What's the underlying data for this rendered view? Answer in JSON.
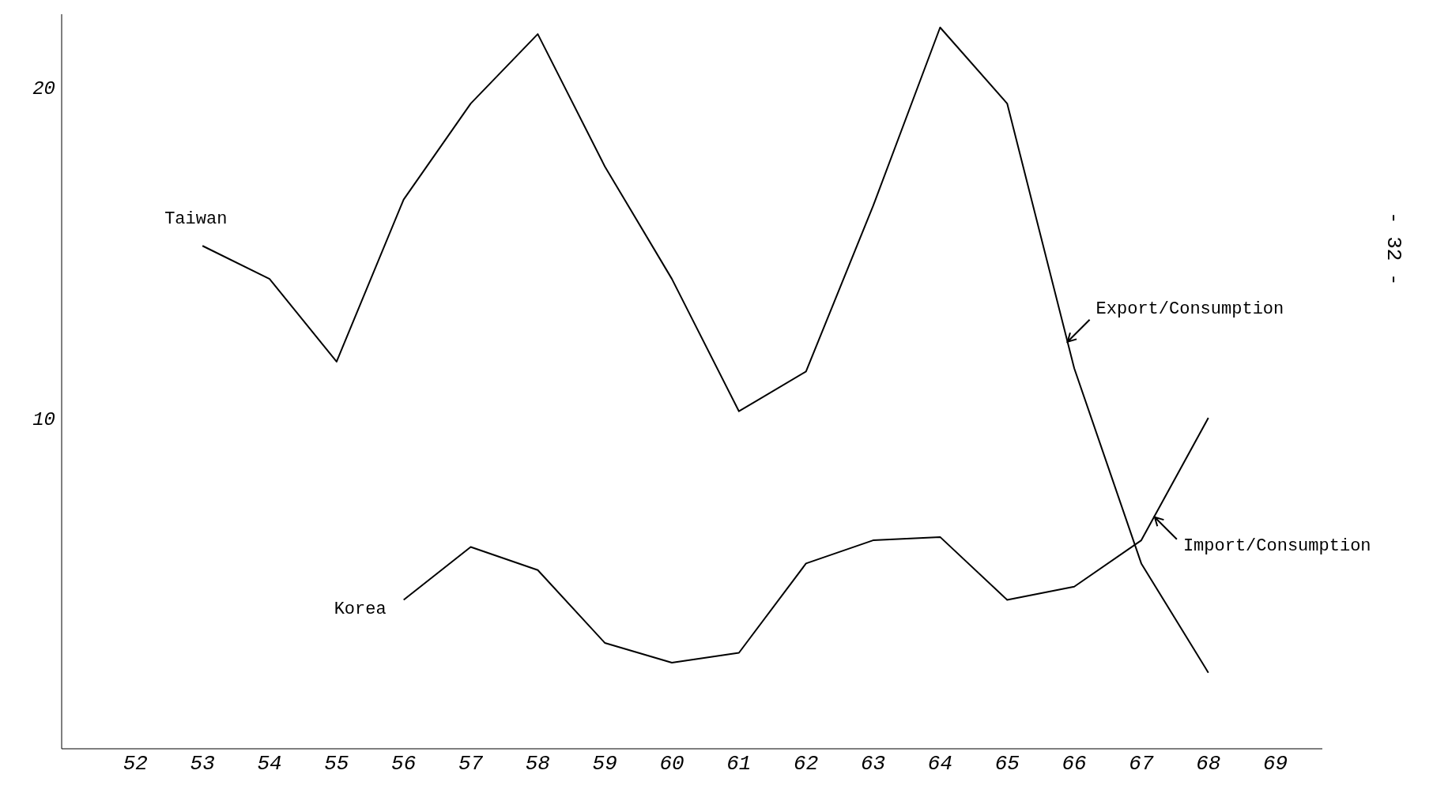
{
  "chart_data": {
    "type": "line",
    "x": [
      53,
      54,
      55,
      56,
      57,
      58,
      59,
      60,
      61,
      62,
      63,
      64,
      65,
      66,
      67,
      68
    ],
    "series": [
      {
        "name": "Taiwan",
        "color": "#000000",
        "values": [
          15.2,
          14.2,
          11.7,
          16.6,
          19.5,
          21.6,
          17.6,
          14.2,
          10.2,
          11.4,
          16.4,
          21.8,
          19.5,
          11.5,
          5.6,
          2.3
        ]
      },
      {
        "name": "Korea",
        "color": "#000000",
        "values": [
          null,
          null,
          null,
          4.5,
          6.1,
          5.4,
          3.2,
          2.6,
          2.9,
          5.6,
          6.3,
          6.4,
          4.5,
          4.9,
          6.3,
          10.0
        ]
      }
    ],
    "xlim": [
      50.9,
      69.7
    ],
    "xticks": [
      52,
      53,
      54,
      55,
      56,
      57,
      58,
      59,
      60,
      61,
      62,
      63,
      64,
      65,
      66,
      67,
      68,
      69
    ],
    "ylim": [
      0,
      22.2
    ],
    "yticks": [
      10,
      20
    ],
    "grid": false,
    "legend": false,
    "marker": "none",
    "line_style": "solid",
    "annotations": [
      {
        "text": "Export/Consumption",
        "x": 65.9,
        "y": 12.3
      },
      {
        "text": "Import/Consumption",
        "x": 67.2,
        "y": 7.0
      },
      "- 32 -"
    ]
  }
}
